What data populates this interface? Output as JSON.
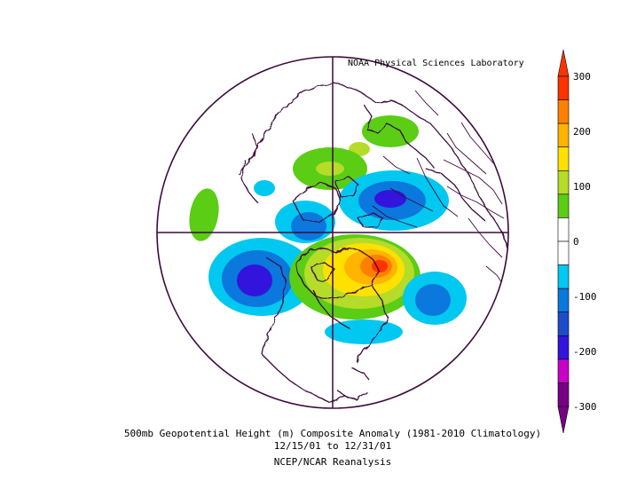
{
  "credit": "NOAA Physical Sciences Laboratory",
  "title": "500mb Geopotential Height (m) Composite Anomaly (1981-2010 Climatology)",
  "date_range": "12/15/01  to 12/31/01",
  "dataset": "NCEP/NCAR Reanalysis",
  "colorbar": {
    "ticks": [
      "300",
      "200",
      "100",
      "0",
      "-100",
      "-200",
      "-300"
    ],
    "bins": [
      {
        "color": "#ff3300"
      },
      {
        "color": "#ff8000"
      },
      {
        "color": "#ffb400"
      },
      {
        "color": "#ffe100"
      },
      {
        "color": "#b4dc28"
      },
      {
        "color": "#5acd14"
      },
      {
        "color": "#ffffff"
      },
      {
        "color": "#ffffff"
      },
      {
        "color": "#00c8f0"
      },
      {
        "color": "#0a78dc"
      },
      {
        "color": "#1e4bc8"
      },
      {
        "color": "#3214dc"
      },
      {
        "color": "#c800c8"
      },
      {
        "color": "#780082"
      }
    ]
  },
  "colors": {
    "coastline": "#3c0a3c",
    "frame": "#3c0a3c"
  }
}
